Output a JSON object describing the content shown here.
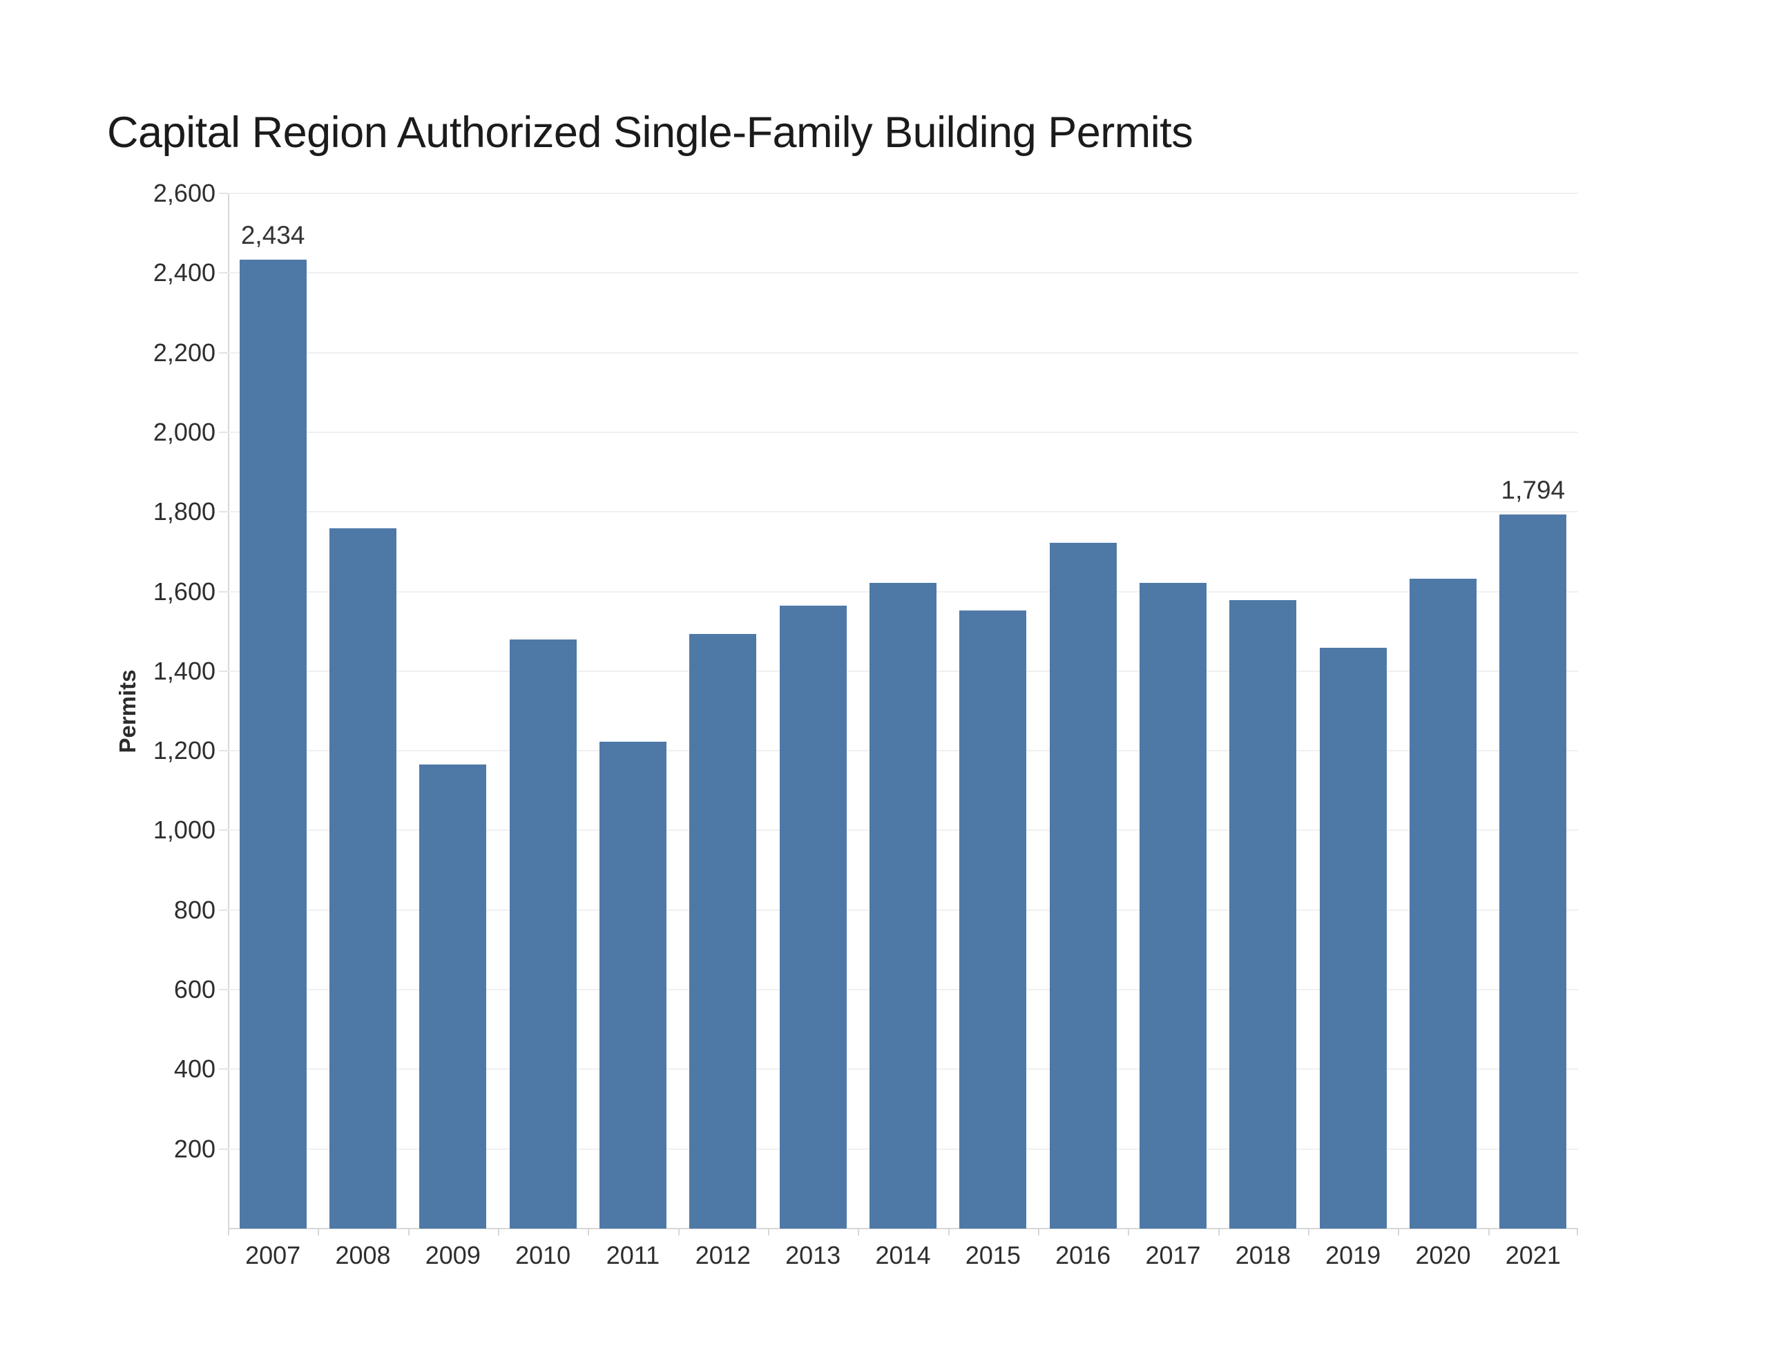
{
  "chart_data": {
    "type": "bar",
    "title": "Capital Region Authorized Single-Family Building Permits",
    "ylabel": "Permits",
    "xlabel": "",
    "categories": [
      "2007",
      "2008",
      "2009",
      "2010",
      "2011",
      "2012",
      "2013",
      "2014",
      "2015",
      "2016",
      "2017",
      "2018",
      "2019",
      "2020",
      "2021"
    ],
    "values": [
      2434,
      1758,
      1165,
      1479,
      1222,
      1494,
      1564,
      1621,
      1552,
      1723,
      1621,
      1578,
      1458,
      1632,
      1794
    ],
    "value_labels": {
      "2007": "2,434",
      "2021": "1,794"
    },
    "ylim": [
      0,
      2600
    ],
    "ytick_step": 200,
    "ytick_values": [
      200,
      400,
      600,
      800,
      1000,
      1200,
      1400,
      1600,
      1800,
      2000,
      2200,
      2400,
      2600
    ],
    "ytick_labels": [
      "200",
      "400",
      "600",
      "800",
      "1,000",
      "1,200",
      "1,400",
      "1,600",
      "1,800",
      "2,000",
      "2,200",
      "2,400",
      "2,600"
    ],
    "grid": "horizontal",
    "legend": "none",
    "colors": {
      "bar": "#4e79a7",
      "gridline": "#f0f0f0",
      "axis": "#d7d7d7",
      "title_text": "#1b1b1b",
      "tick_text": "#2e2e2e",
      "value_label_text": "#333333"
    }
  }
}
